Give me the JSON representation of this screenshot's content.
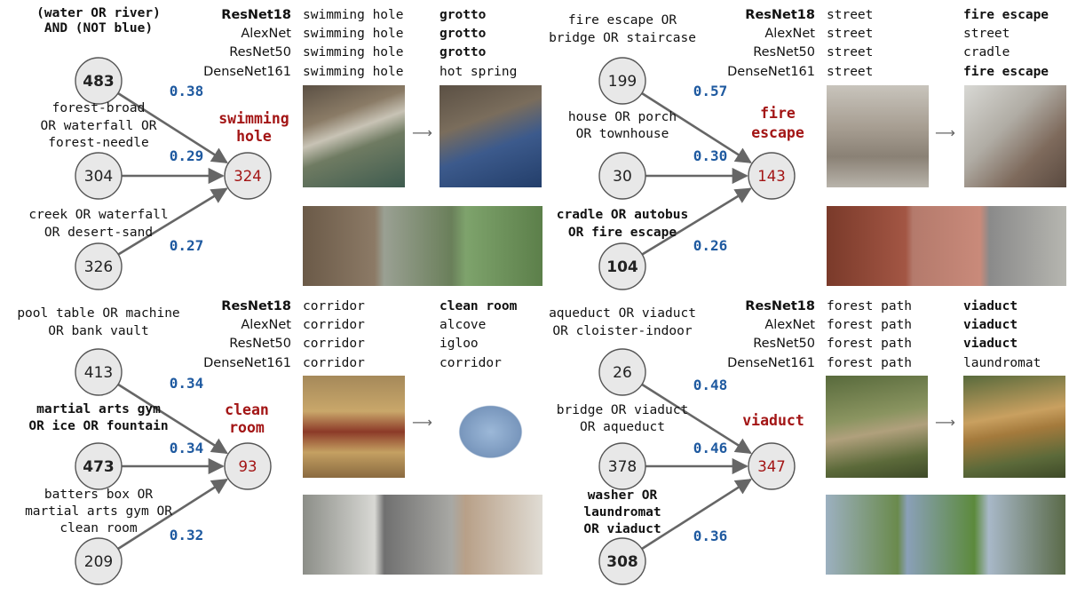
{
  "colors": {
    "target": "#a31515",
    "weight": "#1f5aa0",
    "edge": "#666666",
    "node_fill": "#e8e8e8",
    "node_stroke": "#555555"
  },
  "panels": [
    {
      "target_label": [
        "swimming",
        "hole"
      ],
      "target_id": "324",
      "sources": [
        {
          "lines": [
            "(water OR river)",
            "AND (NOT blue)"
          ],
          "id": "483",
          "weight": "0.38",
          "bold": true
        },
        {
          "lines": [
            "forest-broad",
            "OR waterfall OR",
            "forest-needle"
          ],
          "id": "304",
          "weight": "0.29",
          "bold": false
        },
        {
          "lines": [
            "creek OR waterfall",
            "OR desert-sand"
          ],
          "id": "326",
          "weight": "0.27",
          "bold": false
        }
      ],
      "predictions": [
        {
          "model": "ResNet18",
          "before": "swimming hole",
          "after": "grotto",
          "bold_model": true,
          "bold_after": true
        },
        {
          "model": "AlexNet",
          "before": "swimming hole",
          "after": "grotto",
          "bold_model": false,
          "bold_after": true
        },
        {
          "model": "ResNet50",
          "before": "swimming hole",
          "after": "grotto",
          "bold_model": false,
          "bold_after": true
        },
        {
          "model": "DenseNet161",
          "before": "swimming hole",
          "after": "hot spring",
          "bold_model": false,
          "bold_after": false
        }
      ]
    },
    {
      "target_label": [
        "fire",
        "escape"
      ],
      "target_id": "143",
      "sources": [
        {
          "lines": [
            "fire escape OR",
            "bridge OR staircase"
          ],
          "id": "199",
          "weight": "0.57",
          "bold": false
        },
        {
          "lines": [
            "house OR porch",
            "OR townhouse"
          ],
          "id": "30",
          "weight": "0.30",
          "bold": false
        },
        {
          "lines": [
            "cradle OR autobus",
            "OR fire escape"
          ],
          "id": "104",
          "weight": "0.26",
          "bold": true
        }
      ],
      "predictions": [
        {
          "model": "ResNet18",
          "before": "street",
          "after": "fire escape",
          "bold_model": true,
          "bold_after": true
        },
        {
          "model": "AlexNet",
          "before": "street",
          "after": "street",
          "bold_model": false,
          "bold_after": false
        },
        {
          "model": "ResNet50",
          "before": "street",
          "after": "cradle",
          "bold_model": false,
          "bold_after": false
        },
        {
          "model": "DenseNet161",
          "before": "street",
          "after": "fire escape",
          "bold_model": false,
          "bold_after": true
        }
      ]
    },
    {
      "target_label": [
        "clean",
        "room"
      ],
      "target_id": "93",
      "sources": [
        {
          "lines": [
            "pool table OR machine",
            "OR bank vault"
          ],
          "id": "413",
          "weight": "0.34",
          "bold": false
        },
        {
          "lines": [
            "martial arts gym",
            "OR ice OR fountain"
          ],
          "id": "473",
          "weight": "0.34",
          "bold": true
        },
        {
          "lines": [
            "batters box OR",
            "martial arts gym OR",
            "clean room"
          ],
          "id": "209",
          "weight": "0.32",
          "bold": false
        }
      ],
      "predictions": [
        {
          "model": "ResNet18",
          "before": "corridor",
          "after": "clean room",
          "bold_model": true,
          "bold_after": true
        },
        {
          "model": "AlexNet",
          "before": "corridor",
          "after": "alcove",
          "bold_model": false,
          "bold_after": false
        },
        {
          "model": "ResNet50",
          "before": "corridor",
          "after": "igloo",
          "bold_model": false,
          "bold_after": false
        },
        {
          "model": "DenseNet161",
          "before": "corridor",
          "after": "corridor",
          "bold_model": false,
          "bold_after": false
        }
      ]
    },
    {
      "target_label": [
        "viaduct"
      ],
      "target_id": "347",
      "sources": [
        {
          "lines": [
            "aqueduct OR viaduct",
            "OR cloister-indoor"
          ],
          "id": "26",
          "weight": "0.48",
          "bold": false
        },
        {
          "lines": [
            "bridge OR viaduct",
            "OR aqueduct"
          ],
          "id": "378",
          "weight": "0.46",
          "bold": false
        },
        {
          "lines": [
            "washer OR",
            "laundromat",
            "OR viaduct"
          ],
          "id": "308",
          "weight": "0.36",
          "bold": true
        }
      ],
      "predictions": [
        {
          "model": "ResNet18",
          "before": "forest path",
          "after": "viaduct",
          "bold_model": true,
          "bold_after": true
        },
        {
          "model": "AlexNet",
          "before": "forest path",
          "after": "viaduct",
          "bold_model": false,
          "bold_after": true
        },
        {
          "model": "ResNet50",
          "before": "forest path",
          "after": "viaduct",
          "bold_model": false,
          "bold_after": true
        },
        {
          "model": "DenseNet161",
          "before": "forest path",
          "after": "laundromat",
          "bold_model": false,
          "bold_after": false
        }
      ]
    }
  ]
}
